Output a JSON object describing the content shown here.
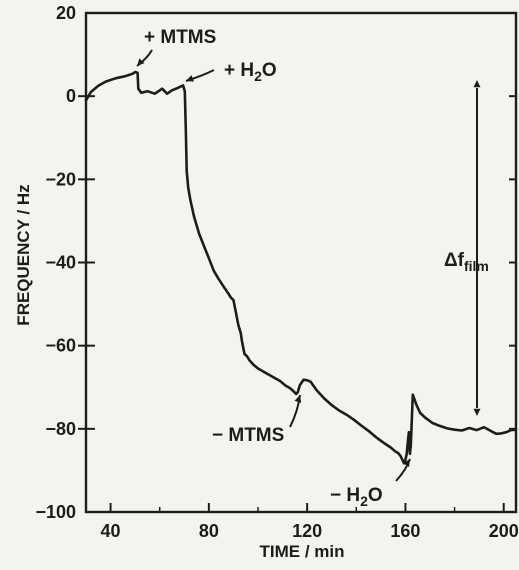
{
  "chart_data": {
    "type": "line",
    "title": "",
    "xlabel": "TIME / min",
    "ylabel": "FREQUENCY / Hz",
    "xlim": [
      30,
      205
    ],
    "ylim": [
      -100,
      20
    ],
    "xticks": [
      40,
      80,
      120,
      160,
      200
    ],
    "yticks": [
      20,
      0,
      -20,
      -40,
      -60,
      -80,
      -100
    ],
    "x_tick_labels": [
      "40",
      "80",
      "120",
      "160",
      "200"
    ],
    "y_tick_labels": [
      "20",
      "0",
      "−20",
      "−40",
      "−60",
      "−80",
      "−100"
    ],
    "grid": false,
    "series": [
      {
        "x": [
          30,
          32,
          35,
          38,
          42,
          46,
          49,
          50,
          51,
          51.3,
          52.5,
          55,
          58,
          61,
          63,
          65,
          67,
          68.5,
          69.5,
          70.2,
          70.6,
          71,
          71.6,
          72.5,
          74,
          76,
          78,
          80,
          82,
          84,
          86,
          88,
          89,
          90,
          91,
          92,
          93,
          93.5,
          94.5,
          95.5,
          96.5,
          98,
          100,
          103,
          106,
          109,
          111,
          113,
          114,
          115,
          115.5,
          116.2,
          117,
          118.5,
          120,
          121.5,
          122,
          124,
          127,
          130,
          133,
          136,
          139,
          142,
          145,
          148,
          151,
          154,
          156,
          157,
          158,
          158.8,
          159.4,
          160,
          160.5,
          161,
          161.4,
          161.8,
          162.2,
          163,
          164.5,
          166,
          168,
          171,
          174,
          177,
          180,
          183,
          186,
          189,
          192,
          195,
          197,
          199,
          201,
          203,
          205
        ],
        "y": [
          -1,
          1,
          2.5,
          3.5,
          4.3,
          4.8,
          5.4,
          5.8,
          5.6,
          1.8,
          0.8,
          1.2,
          0.6,
          1.8,
          0.6,
          1.4,
          1.9,
          2.3,
          2.6,
          1.2,
          -8,
          -18,
          -22,
          -25,
          -29,
          -33,
          -36,
          -39,
          -42,
          -44,
          -45.8,
          -47.5,
          -48.5,
          -49,
          -52,
          -55,
          -57,
          -59,
          -62,
          -62.5,
          -63.5,
          -64.5,
          -65.5,
          -66.5,
          -67.5,
          -68.5,
          -69.5,
          -70.2,
          -70.7,
          -71.3,
          -71.6,
          -71.2,
          -69.5,
          -68.2,
          -68.3,
          -68.7,
          -69.2,
          -70.8,
          -72.7,
          -74.3,
          -75.6,
          -76.6,
          -77.8,
          -79.2,
          -80.5,
          -82,
          -83.3,
          -84.5,
          -85.5,
          -85.8,
          -86.5,
          -87.5,
          -88.3,
          -87.5,
          -86,
          -83,
          -80.8,
          -86,
          -84,
          -71.8,
          -74.3,
          -76.2,
          -77.3,
          -78.6,
          -79.3,
          -79.9,
          -80.2,
          -80.4,
          -79.8,
          -80.3,
          -79.6,
          -80.6,
          -81.2,
          -81.1,
          -80.8,
          -80.3,
          -80.2
        ]
      }
    ],
    "annotations": [
      {
        "text_main": "+ MTMS",
        "text_sub": ""
      },
      {
        "text_main": "+ H",
        "text_sub": "2",
        "text_tail": "O"
      },
      {
        "text_main": "− MTMS",
        "text_sub": ""
      },
      {
        "text_main": "− H",
        "text_sub": "2",
        "text_tail": "O"
      },
      {
        "text_main": "Δf",
        "text_sub": "film"
      }
    ]
  }
}
